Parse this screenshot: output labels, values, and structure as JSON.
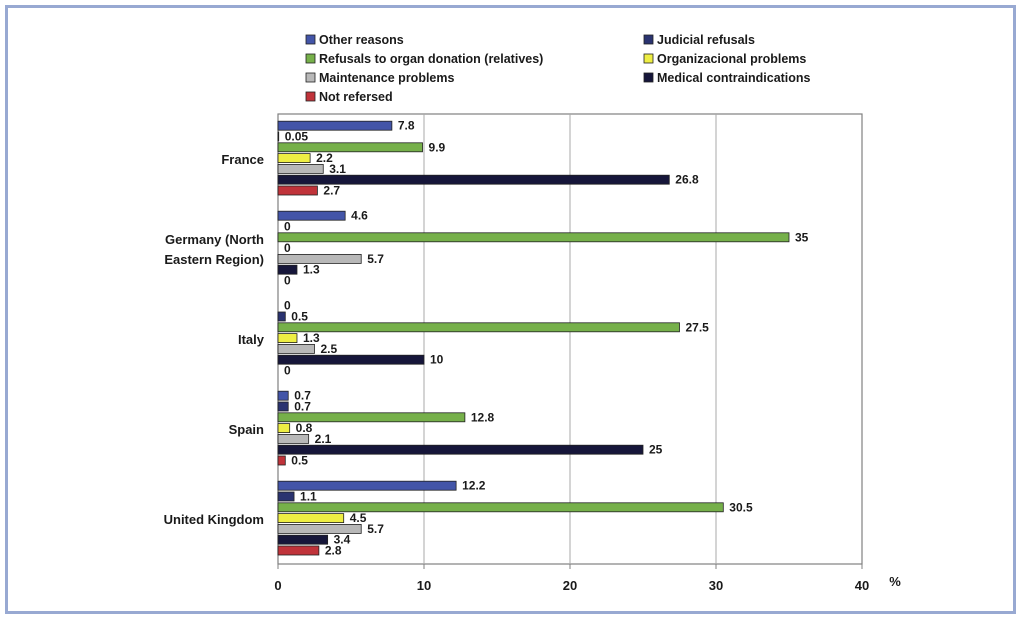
{
  "chart_data": {
    "type": "bar",
    "orientation": "horizontal",
    "xlabel": "%",
    "xlim": [
      0,
      40
    ],
    "xticks": [
      0,
      10,
      20,
      30,
      40
    ],
    "grid": true,
    "legend_position": "top",
    "categories": [
      "France",
      "Germany (North Eastern Region)",
      "Italy",
      "Spain",
      "United Kingdom"
    ],
    "series": [
      {
        "name": "Other reasons",
        "color": "#4355a8",
        "values": [
          7.8,
          4.6,
          0,
          0.7,
          12.2
        ],
        "labels": [
          "7.8",
          "4.6",
          "0",
          "0.7",
          "12.2"
        ]
      },
      {
        "name": "Judicial refusals",
        "color": "#2a3370",
        "values": [
          0.05,
          0,
          0.5,
          0.7,
          1.1
        ],
        "labels": [
          "0.05",
          "0",
          "0.5",
          "0.7",
          "1.1"
        ]
      },
      {
        "name": "Refusals to organ donation (relatives)",
        "color": "#76b04a",
        "values": [
          9.9,
          35,
          27.5,
          12.8,
          30.5
        ],
        "labels": [
          "9.9",
          "35",
          "27.5",
          "12.8",
          "30.5"
        ]
      },
      {
        "name": "Organizacional problems",
        "color": "#eeee44",
        "values": [
          2.2,
          0,
          1.3,
          0.8,
          4.5
        ],
        "labels": [
          "2.2",
          "0",
          "1.3",
          "0.8",
          "4.5"
        ]
      },
      {
        "name": "Maintenance problems",
        "color": "#b8b8b8",
        "values": [
          3.1,
          5.7,
          2.5,
          2.1,
          5.7
        ],
        "labels": [
          "3.1",
          "5.7",
          "2.5",
          "2.1",
          "5.7"
        ]
      },
      {
        "name": "Medical contraindications",
        "color": "#16163a",
        "values": [
          26.8,
          1.3,
          10,
          25,
          3.4
        ],
        "labels": [
          "26.8",
          "1.3",
          "10",
          "25",
          "3.4"
        ]
      },
      {
        "name": "Not refersed",
        "color": "#c0333a",
        "values": [
          2.7,
          0,
          0,
          0.5,
          2.8
        ],
        "labels": [
          "2.7",
          "0",
          "0",
          "0.5",
          "2.8"
        ]
      }
    ]
  }
}
